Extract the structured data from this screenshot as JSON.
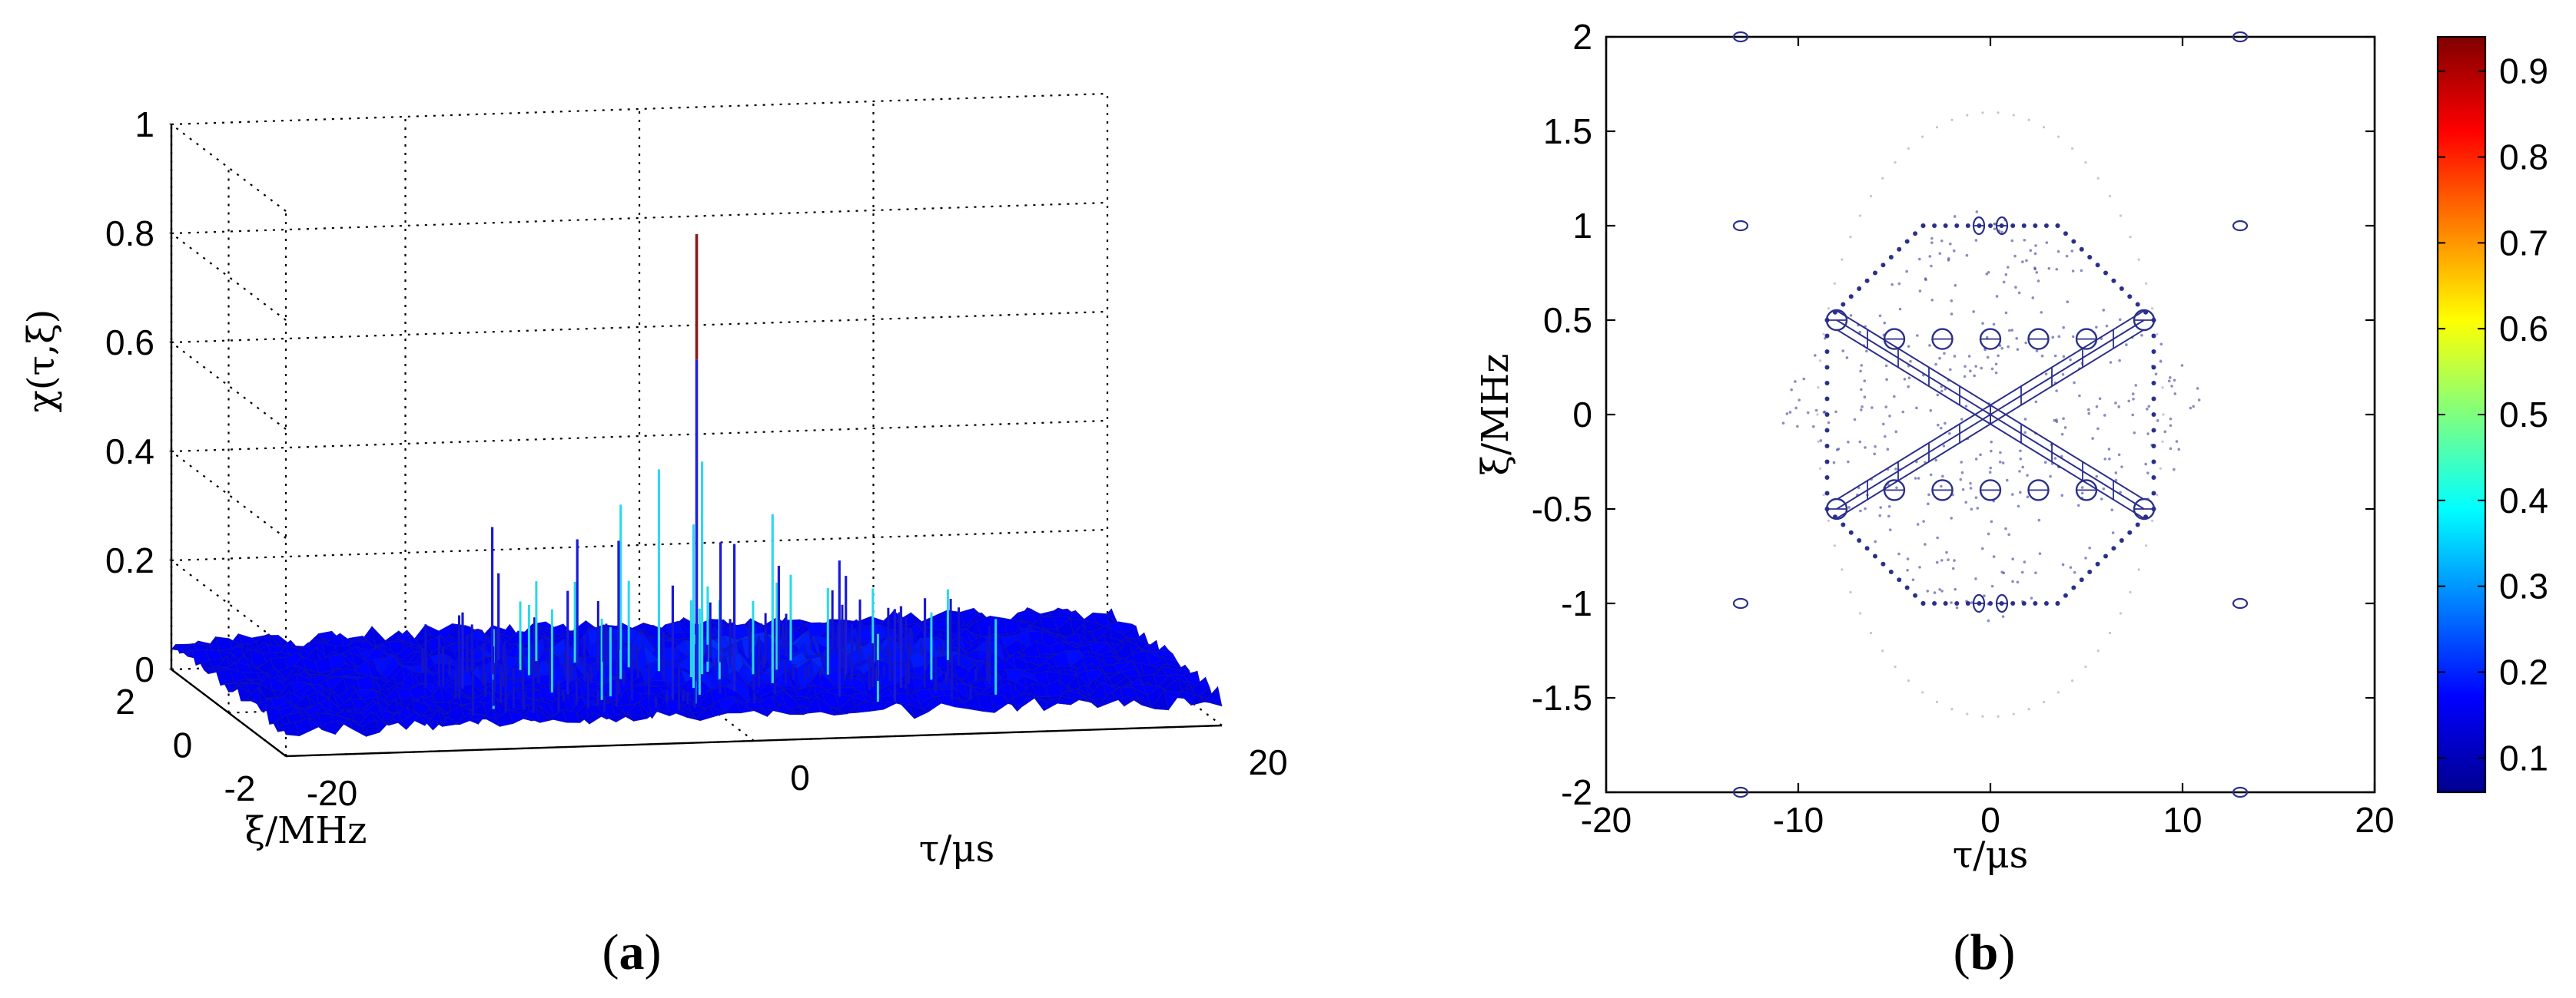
{
  "chart_data": [
    {
      "panel": "a",
      "type": "surface3d",
      "zlabel": "χ(τ,ξ)",
      "xlabel": "τ/μs",
      "ylabel": "ξ/MHz",
      "z_ticks": [
        "0",
        "0.2",
        "0.4",
        "0.6",
        "0.8",
        "1"
      ],
      "z_tick_values": [
        0,
        0.2,
        0.4,
        0.6,
        0.8,
        1
      ],
      "x_ticks": [
        "-20",
        "0",
        "20"
      ],
      "x_tick_values": [
        -20,
        0,
        20
      ],
      "y_ticks": [
        "2",
        "0",
        "-2"
      ],
      "y_tick_values": [
        2,
        0,
        -2
      ],
      "xlim": [
        -20,
        20
      ],
      "ylim": [
        -2,
        2
      ],
      "zlim": [
        0,
        1
      ],
      "grid": true,
      "colormap": "jet",
      "floor_level": 0.03,
      "peak": {
        "tau": 0,
        "xi": 0,
        "value": 0.85
      },
      "spikes": [
        {
          "tau": -8.0,
          "xi": 0.6,
          "value": 0.3
        },
        {
          "tau": -6.0,
          "xi": -0.4,
          "value": 0.22
        },
        {
          "tau": -4.0,
          "xi": 0.9,
          "value": 0.26
        },
        {
          "tau": -3.0,
          "xi": 0.2,
          "value": 0.35
        },
        {
          "tau": -2.0,
          "xi": -0.8,
          "value": 0.24
        },
        {
          "tau": -1.0,
          "xi": 0.5,
          "value": 0.4
        },
        {
          "tau": -0.5,
          "xi": -0.3,
          "value": 0.33
        },
        {
          "tau": 0.6,
          "xi": 0.3,
          "value": 0.42
        },
        {
          "tau": 1.0,
          "xi": -0.5,
          "value": 0.3
        },
        {
          "tau": 2.0,
          "xi": 0.8,
          "value": 0.25
        },
        {
          "tau": 3.0,
          "xi": -0.2,
          "value": 0.34
        },
        {
          "tau": 4.0,
          "xi": 0.4,
          "value": 0.22
        },
        {
          "tau": 5.0,
          "xi": -0.9,
          "value": 0.28
        },
        {
          "tau": 6.5,
          "xi": 0.1,
          "value": 0.21
        },
        {
          "tau": 8.0,
          "xi": -0.6,
          "value": 0.18
        },
        {
          "tau": -10.0,
          "xi": 0.0,
          "value": 0.17
        },
        {
          "tau": 10.0,
          "xi": 0.2,
          "value": 0.16
        },
        {
          "tau": -7.0,
          "xi": 1.2,
          "value": 0.19
        },
        {
          "tau": 7.0,
          "xi": -1.2,
          "value": 0.2
        },
        {
          "tau": -1.5,
          "xi": 1.5,
          "value": 0.23
        }
      ]
    },
    {
      "panel": "b",
      "type": "contour",
      "xlabel": "τ/μs",
      "ylabel": "ξ/MHz",
      "xlim": [
        -20,
        20
      ],
      "ylim": [
        -2,
        2
      ],
      "x_ticks": [
        "-20",
        "-10",
        "0",
        "10",
        "20"
      ],
      "x_tick_values": [
        -20,
        -10,
        0,
        10,
        20
      ],
      "y_ticks": [
        "2",
        "1.5",
        "1",
        "0.5",
        "0",
        "-0.5",
        "-1",
        "-1.5",
        "-2"
      ],
      "y_tick_values": [
        2,
        1.5,
        1,
        0.5,
        0,
        -0.5,
        -1,
        -1.5,
        -2
      ],
      "colorbar_ticks": [
        "0.9",
        "0.8",
        "0.7",
        "0.6",
        "0.5",
        "0.4",
        "0.3",
        "0.2",
        "0.1"
      ],
      "colorbar_tick_values": [
        0.9,
        0.8,
        0.7,
        0.6,
        0.5,
        0.4,
        0.3,
        0.2,
        0.1
      ],
      "colorbar_range": [
        0.06,
        0.94
      ],
      "colormap": "jet",
      "contour_color": "#2b2f8c",
      "features": {
        "x_shape_lines": [
          {
            "from": [
              -8,
              0.5
            ],
            "to": [
              8,
              -0.5
            ]
          },
          {
            "from": [
              -8,
              -0.5
            ],
            "to": [
              8,
              0.5
            ]
          }
        ],
        "rings": [
          {
            "tau": -8,
            "xi": 0.5
          },
          {
            "tau": 8,
            "xi": 0.5
          },
          {
            "tau": -8,
            "xi": -0.5
          },
          {
            "tau": 8,
            "xi": -0.5
          },
          {
            "tau": -5,
            "xi": 0.4
          },
          {
            "tau": 5,
            "xi": 0.4
          },
          {
            "tau": -5,
            "xi": -0.4
          },
          {
            "tau": 5,
            "xi": -0.4
          },
          {
            "tau": -2.5,
            "xi": 0.4
          },
          {
            "tau": 2.5,
            "xi": 0.4
          },
          {
            "tau": -2.5,
            "xi": -0.4
          },
          {
            "tau": 2.5,
            "xi": -0.4
          },
          {
            "tau": 0,
            "xi": 0.4
          },
          {
            "tau": 0,
            "xi": -0.4
          }
        ],
        "small_ovals": [
          {
            "tau": -13,
            "xi": 1
          },
          {
            "tau": 13,
            "xi": 1
          },
          {
            "tau": -13,
            "xi": -1
          },
          {
            "tau": 13,
            "xi": -1
          },
          {
            "tau": -13,
            "xi": 2
          },
          {
            "tau": 13,
            "xi": 2
          },
          {
            "tau": -13,
            "xi": -2
          },
          {
            "tau": 13,
            "xi": -2
          }
        ],
        "theta_pairs": [
          {
            "tau": -0.6,
            "xi": 1
          },
          {
            "tau": 0.6,
            "xi": 1
          },
          {
            "tau": -0.6,
            "xi": -1
          },
          {
            "tau": 0.6,
            "xi": -1
          }
        ]
      }
    }
  ],
  "captions": {
    "a": "a",
    "b": "b"
  }
}
